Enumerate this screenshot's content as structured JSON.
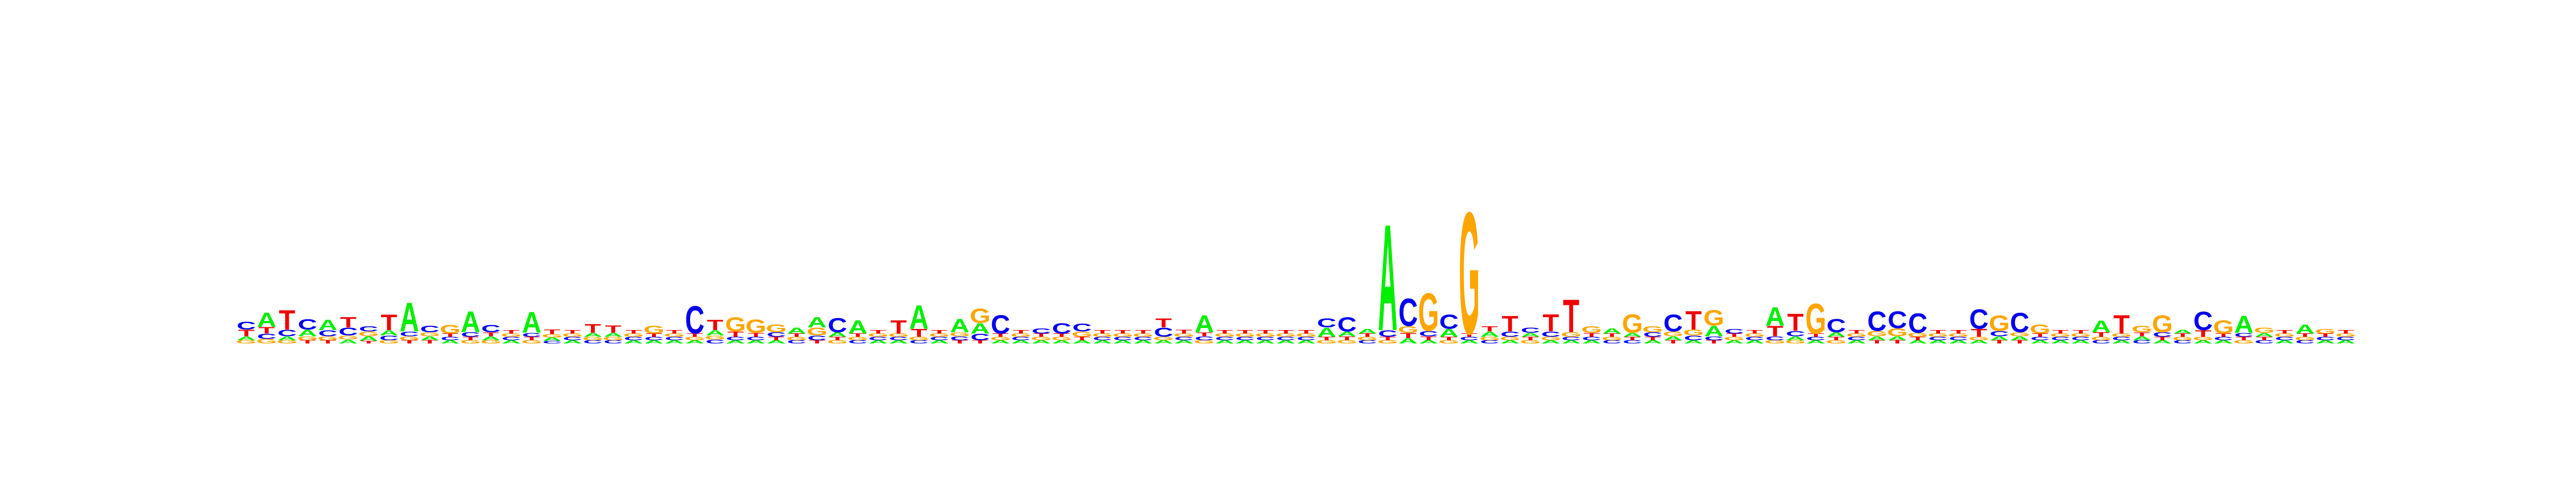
{
  "colors": {
    "A": "#00ee00",
    "C": "#0000ee",
    "G": "#ffa500",
    "T": "#ee0000"
  },
  "chart_data": {
    "type": "sequence-logo",
    "alphabet": [
      "A",
      "C",
      "G",
      "T"
    ],
    "xlabel": "",
    "ylabel": "",
    "positions": [
      [
        0.06,
        0.12,
        0.05,
        0.1
      ],
      [
        0.22,
        0.08,
        0.07,
        0.1
      ],
      [
        0.06,
        0.1,
        0.05,
        0.3
      ],
      [
        0.1,
        0.16,
        0.06,
        0.05
      ],
      [
        0.16,
        0.09,
        0.06,
        0.05
      ],
      [
        0.06,
        0.12,
        0.06,
        0.16
      ],
      [
        0.07,
        0.08,
        0.07,
        0.04
      ],
      [
        0.08,
        0.07,
        0.05,
        0.24
      ],
      [
        0.44,
        0.07,
        0.06,
        0.05
      ],
      [
        0.06,
        0.1,
        0.06,
        0.05
      ],
      [
        0.05,
        0.05,
        0.13,
        0.05
      ],
      [
        0.32,
        0.07,
        0.05,
        0.05
      ],
      [
        0.06,
        0.11,
        0.05,
        0.06
      ],
      [
        0.05,
        0.05,
        0.05,
        0.05
      ],
      [
        0.32,
        0.06,
        0.05,
        0.05
      ],
      [
        0.05,
        0.04,
        0.05,
        0.07
      ],
      [
        0.05,
        0.05,
        0.05,
        0.05
      ],
      [
        0.06,
        0.05,
        0.05,
        0.13
      ],
      [
        0.06,
        0.05,
        0.05,
        0.11
      ],
      [
        0.05,
        0.05,
        0.05,
        0.05
      ],
      [
        0.05,
        0.05,
        0.12,
        0.05
      ],
      [
        0.05,
        0.05,
        0.05,
        0.05
      ],
      [
        0.05,
        0.42,
        0.05,
        0.05
      ],
      [
        0.08,
        0.06,
        0.06,
        0.16
      ],
      [
        0.05,
        0.05,
        0.22,
        0.08
      ],
      [
        0.05,
        0.05,
        0.2,
        0.06
      ],
      [
        0.05,
        0.07,
        0.12,
        0.05
      ],
      [
        0.09,
        0.05,
        0.05,
        0.05
      ],
      [
        0.16,
        0.07,
        0.12,
        0.05
      ],
      [
        0.07,
        0.22,
        0.05,
        0.05
      ],
      [
        0.2,
        0.05,
        0.05,
        0.05
      ],
      [
        0.05,
        0.05,
        0.05,
        0.05
      ],
      [
        0.05,
        0.05,
        0.05,
        0.2
      ],
      [
        0.36,
        0.05,
        0.05,
        0.12
      ],
      [
        0.05,
        0.05,
        0.05,
        0.05
      ],
      [
        0.2,
        0.06,
        0.06,
        0.05
      ],
      [
        0.16,
        0.1,
        0.22,
        0.05
      ],
      [
        0.05,
        0.28,
        0.05,
        0.05
      ],
      [
        0.05,
        0.05,
        0.05,
        0.05
      ],
      [
        0.05,
        0.08,
        0.05,
        0.05
      ],
      [
        0.05,
        0.16,
        0.05,
        0.05
      ],
      [
        0.05,
        0.12,
        0.08,
        0.05
      ],
      [
        0.05,
        0.05,
        0.05,
        0.05
      ],
      [
        0.05,
        0.05,
        0.05,
        0.05
      ],
      [
        0.05,
        0.05,
        0.05,
        0.05
      ],
      [
        0.05,
        0.14,
        0.05,
        0.14
      ],
      [
        0.05,
        0.05,
        0.05,
        0.06
      ],
      [
        0.26,
        0.06,
        0.05,
        0.06
      ],
      [
        0.05,
        0.05,
        0.05,
        0.05
      ],
      [
        0.05,
        0.05,
        0.05,
        0.05
      ],
      [
        0.05,
        0.05,
        0.05,
        0.05
      ],
      [
        0.05,
        0.05,
        0.05,
        0.05
      ],
      [
        0.05,
        0.05,
        0.05,
        0.05
      ],
      [
        0.14,
        0.14,
        0.05,
        0.05
      ],
      [
        0.07,
        0.22,
        0.05,
        0.06
      ],
      [
        0.07,
        0.05,
        0.05,
        0.05
      ],
      [
        1.62,
        0.1,
        0.05,
        0.05
      ],
      [
        0.08,
        0.42,
        0.1,
        0.08
      ],
      [
        0.05,
        0.08,
        0.58,
        0.06
      ],
      [
        0.12,
        0.22,
        0.05,
        0.05
      ],
      [
        0.05,
        0.05,
        1.86,
        0.05
      ],
      [
        0.08,
        0.05,
        0.05,
        0.08
      ],
      [
        0.05,
        0.08,
        0.05,
        0.24
      ],
      [
        0.06,
        0.08,
        0.05,
        0.05
      ],
      [
        0.05,
        0.08,
        0.05,
        0.26
      ],
      [
        0.05,
        0.05,
        0.07,
        0.5
      ],
      [
        0.05,
        0.05,
        0.1,
        0.06
      ],
      [
        0.08,
        0.05,
        0.05,
        0.05
      ],
      [
        0.06,
        0.05,
        0.28,
        0.05
      ],
      [
        0.05,
        0.07,
        0.09,
        0.05
      ],
      [
        0.06,
        0.26,
        0.07,
        0.05
      ],
      [
        0.05,
        0.07,
        0.09,
        0.28
      ],
      [
        0.16,
        0.06,
        0.24,
        0.05
      ],
      [
        0.05,
        0.07,
        0.05,
        0.05
      ],
      [
        0.05,
        0.05,
        0.05,
        0.05
      ],
      [
        0.28,
        0.06,
        0.05,
        0.16
      ],
      [
        0.06,
        0.08,
        0.05,
        0.26
      ],
      [
        0.05,
        0.05,
        0.46,
        0.05
      ],
      [
        0.07,
        0.2,
        0.05,
        0.05
      ],
      [
        0.05,
        0.05,
        0.05,
        0.05
      ],
      [
        0.06,
        0.3,
        0.08,
        0.05
      ],
      [
        0.06,
        0.26,
        0.12,
        0.05
      ],
      [
        0.05,
        0.3,
        0.06,
        0.05
      ],
      [
        0.05,
        0.05,
        0.05,
        0.05
      ],
      [
        0.05,
        0.05,
        0.05,
        0.05
      ],
      [
        0.05,
        0.3,
        0.05,
        0.12
      ],
      [
        0.06,
        0.08,
        0.24,
        0.05
      ],
      [
        0.06,
        0.3,
        0.06,
        0.05
      ],
      [
        0.05,
        0.05,
        0.14,
        0.05
      ],
      [
        0.05,
        0.05,
        0.05,
        0.05
      ],
      [
        0.05,
        0.05,
        0.05,
        0.05
      ],
      [
        0.18,
        0.05,
        0.05,
        0.07
      ],
      [
        0.05,
        0.05,
        0.05,
        0.28
      ],
      [
        0.06,
        0.05,
        0.1,
        0.06
      ],
      [
        0.05,
        0.07,
        0.26,
        0.05
      ],
      [
        0.06,
        0.05,
        0.05,
        0.05
      ],
      [
        0.05,
        0.28,
        0.05,
        0.1
      ],
      [
        0.05,
        0.05,
        0.2,
        0.05
      ],
      [
        0.26,
        0.06,
        0.05,
        0.05
      ],
      [
        0.06,
        0.05,
        0.08,
        0.05
      ],
      [
        0.05,
        0.05,
        0.05,
        0.05
      ],
      [
        0.14,
        0.05,
        0.05,
        0.05
      ],
      [
        0.05,
        0.05,
        0.07,
        0.05
      ],
      [
        0.05,
        0.05,
        0.05,
        0.05
      ]
    ]
  }
}
